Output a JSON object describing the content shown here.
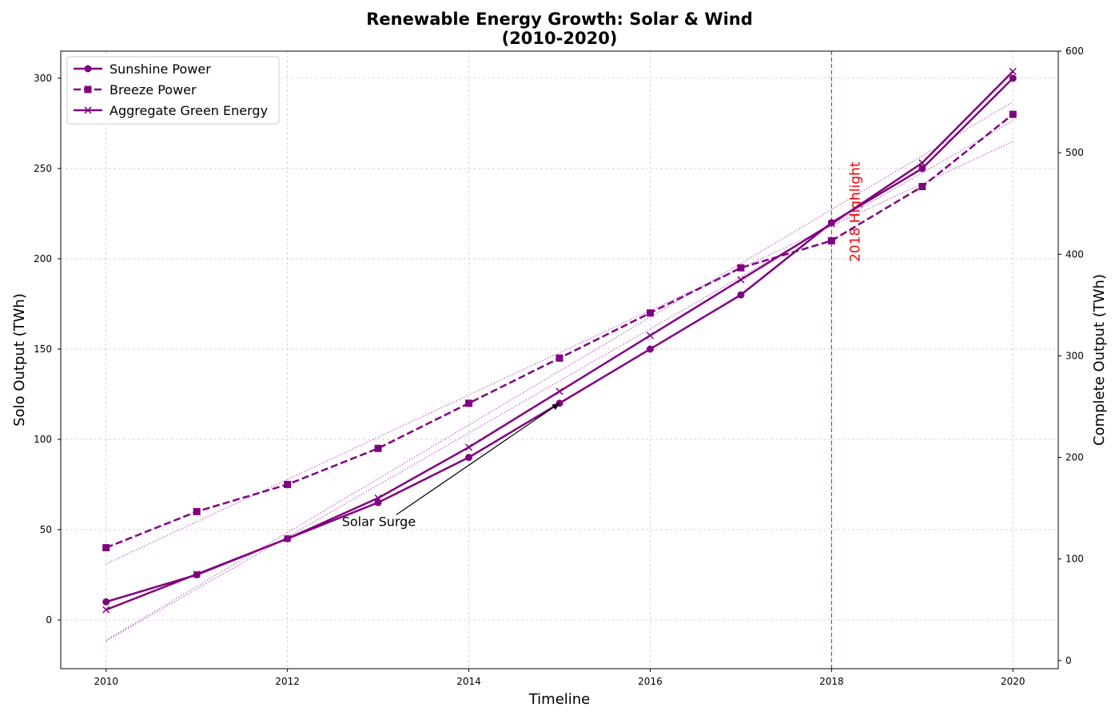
{
  "chart_data": {
    "type": "line",
    "title": [
      "Renewable Energy Growth: Solar & Wind",
      "(2010-2020)"
    ],
    "xlabel": "Timeline",
    "ylabel": "Solo Output (TWh)",
    "y2label": "Complete Output (TWh)",
    "xlim": [
      2009.5,
      2020.5
    ],
    "ylim": [
      -27,
      315
    ],
    "y2lim": [
      -8,
      600
    ],
    "xticks": [
      2010,
      2012,
      2014,
      2016,
      2018,
      2020
    ],
    "yticks": [
      0,
      50,
      100,
      150,
      200,
      250,
      300
    ],
    "y2ticks": [
      0,
      100,
      200,
      300,
      400,
      500,
      600
    ],
    "grid": true,
    "legend_position": "top-left",
    "color": "#800080",
    "x": [
      2010,
      2011,
      2012,
      2013,
      2014,
      2015,
      2016,
      2017,
      2018,
      2019,
      2020
    ],
    "series": [
      {
        "name": "Sunshine Power",
        "axis": "left",
        "marker": "circle",
        "linestyle": "solid",
        "values": [
          10,
          25,
          45,
          65,
          90,
          120,
          150,
          180,
          220,
          250,
          300
        ]
      },
      {
        "name": "Breeze Power",
        "axis": "left",
        "marker": "square",
        "linestyle": "dashed",
        "values": [
          40,
          60,
          75,
          95,
          120,
          145,
          170,
          195,
          210,
          240,
          280
        ]
      },
      {
        "name": "Aggregate Green Energy",
        "axis": "right",
        "marker": "x",
        "linestyle": "solid",
        "values": [
          50,
          85,
          120,
          160,
          210,
          265,
          320,
          375,
          430,
          490,
          580
        ]
      }
    ],
    "trend_lines": [
      {
        "axis": "left",
        "x": [
          2010,
          2020
        ],
        "values": [
          -11.7,
          276.4
        ]
      },
      {
        "axis": "left",
        "x": [
          2010,
          2020
        ],
        "values": [
          31,
          265
        ]
      },
      {
        "axis": "right",
        "x": [
          2010,
          2020
        ],
        "values": [
          20,
          550
        ]
      }
    ],
    "highlight": {
      "x": 2018,
      "label": "2018 Highlight",
      "color": "#ff0000"
    },
    "annotation": {
      "text": "Solar Surge",
      "x": 2015,
      "y": 120,
      "text_x": 2012.6,
      "text_y": 52
    }
  }
}
